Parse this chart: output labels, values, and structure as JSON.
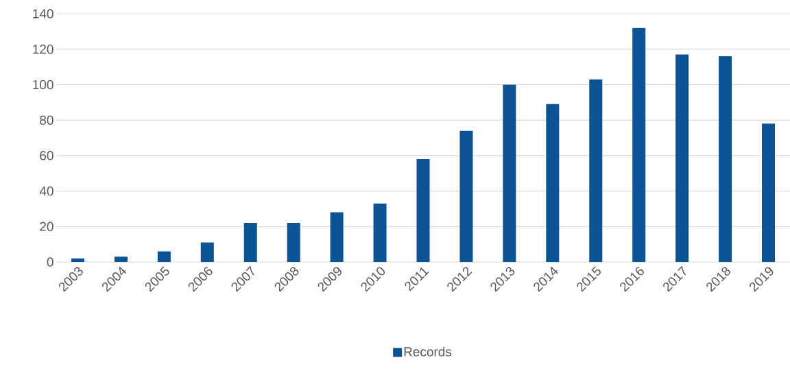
{
  "chart_data": {
    "type": "bar",
    "categories": [
      "2003",
      "2004",
      "2005",
      "2006",
      "2007",
      "2008",
      "2009",
      "2010",
      "2011",
      "2012",
      "2013",
      "2014",
      "2015",
      "2016",
      "2017",
      "2018",
      "2019"
    ],
    "series": [
      {
        "name": "Records",
        "color": "#0b5394",
        "values": [
          2,
          3,
          6,
          11,
          22,
          22,
          28,
          33,
          58,
          74,
          100,
          89,
          103,
          132,
          117,
          116,
          78
        ]
      }
    ],
    "ylim": [
      0,
      140
    ],
    "yticks": [
      0,
      20,
      40,
      60,
      80,
      100,
      120,
      140
    ],
    "grid": "y",
    "legend": "bottom"
  }
}
